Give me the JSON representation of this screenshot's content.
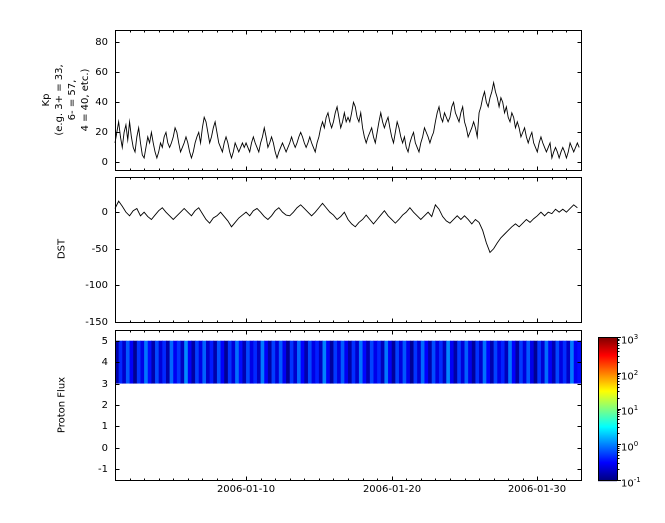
{
  "figure": {
    "background": "#ffffff",
    "frame_color": "#000000",
    "line_color": "#000000"
  },
  "x_axis": {
    "lim_days": [
      1,
      33
    ],
    "minor_step_days": 1,
    "ticks": [
      {
        "day": 10,
        "label": "2006-01-10"
      },
      {
        "day": 20,
        "label": "2006-01-20"
      },
      {
        "day": 30,
        "label": "2006-01-30"
      }
    ]
  },
  "chart_data": [
    {
      "type": "line",
      "name": "kp-index",
      "ylabel_lines": [
        "Kp",
        "(e.g. 3+ = 33,",
        "6- = 57,",
        "4 = 40, etc.)"
      ],
      "ylim": [
        -5,
        88
      ],
      "yticks": [
        0,
        20,
        40,
        60,
        80
      ],
      "x_start_day": 1,
      "x_step_days": 0.125,
      "values": [
        13,
        20,
        27,
        17,
        10,
        20,
        25,
        15,
        27,
        17,
        10,
        7,
        17,
        23,
        13,
        5,
        3,
        10,
        17,
        13,
        20,
        13,
        7,
        3,
        7,
        13,
        10,
        17,
        20,
        13,
        10,
        13,
        17,
        23,
        20,
        13,
        7,
        10,
        13,
        17,
        13,
        7,
        3,
        7,
        13,
        17,
        20,
        13,
        23,
        30,
        27,
        20,
        13,
        17,
        23,
        27,
        20,
        13,
        10,
        7,
        13,
        17,
        13,
        7,
        3,
        7,
        13,
        10,
        7,
        10,
        13,
        10,
        13,
        10,
        7,
        13,
        17,
        13,
        10,
        7,
        13,
        17,
        23,
        17,
        10,
        13,
        17,
        13,
        7,
        3,
        7,
        10,
        13,
        10,
        7,
        10,
        13,
        17,
        13,
        10,
        13,
        17,
        20,
        17,
        13,
        10,
        13,
        17,
        13,
        10,
        7,
        13,
        17,
        23,
        27,
        23,
        30,
        33,
        27,
        23,
        27,
        33,
        37,
        30,
        23,
        27,
        33,
        27,
        30,
        27,
        33,
        40,
        37,
        30,
        27,
        33,
        23,
        17,
        13,
        17,
        20,
        23,
        17,
        13,
        20,
        27,
        33,
        27,
        23,
        27,
        30,
        23,
        17,
        13,
        20,
        27,
        23,
        17,
        13,
        17,
        10,
        7,
        13,
        17,
        20,
        13,
        10,
        7,
        13,
        17,
        23,
        20,
        17,
        13,
        17,
        20,
        27,
        33,
        37,
        30,
        27,
        33,
        30,
        27,
        30,
        37,
        40,
        33,
        30,
        27,
        33,
        37,
        27,
        23,
        17,
        20,
        23,
        27,
        23,
        17,
        33,
        37,
        43,
        47,
        40,
        37,
        43,
        47,
        53,
        47,
        43,
        37,
        43,
        40,
        33,
        37,
        30,
        27,
        33,
        30,
        23,
        27,
        23,
        17,
        20,
        23,
        17,
        13,
        17,
        20,
        13,
        10,
        7,
        13,
        17,
        13,
        10,
        7,
        10,
        13,
        3,
        7,
        10,
        7,
        3,
        7,
        10,
        7,
        3,
        7,
        13,
        10,
        7,
        10,
        13,
        10
      ]
    },
    {
      "type": "line",
      "name": "dst-index",
      "ylabel": "DST",
      "ylim": [
        -150,
        48
      ],
      "yticks": [
        0,
        -50,
        -100,
        -150
      ],
      "x_start_day": 1,
      "x_step_days": 0.25,
      "values": [
        5,
        15,
        8,
        0,
        -5,
        2,
        5,
        -5,
        0,
        -6,
        -10,
        -4,
        2,
        6,
        0,
        -5,
        -10,
        -5,
        0,
        5,
        0,
        -5,
        2,
        6,
        -2,
        -10,
        -15,
        -8,
        -5,
        0,
        -6,
        -12,
        -20,
        -14,
        -8,
        -4,
        0,
        -5,
        2,
        5,
        0,
        -6,
        -10,
        -5,
        2,
        6,
        0,
        -4,
        -5,
        0,
        6,
        10,
        5,
        0,
        -5,
        0,
        6,
        12,
        6,
        0,
        -4,
        -10,
        -6,
        0,
        -10,
        -16,
        -20,
        -14,
        -10,
        -4,
        -10,
        -16,
        -10,
        -4,
        2,
        -5,
        -10,
        -15,
        -10,
        -4,
        0,
        6,
        0,
        -5,
        -10,
        -5,
        0,
        -6,
        10,
        4,
        -6,
        -12,
        -15,
        -10,
        -5,
        -10,
        -5,
        -10,
        -16,
        -10,
        -14,
        -25,
        -42,
        -55,
        -50,
        -42,
        -35,
        -30,
        -25,
        -20,
        -16,
        -20,
        -15,
        -10,
        -14,
        -9,
        -5,
        0,
        -5,
        0,
        -2,
        4,
        0,
        4,
        0,
        5,
        10,
        6
      ]
    },
    {
      "type": "heatmap",
      "name": "proton-flux",
      "ylabel": "Proton Flux",
      "ylim": [
        -1.5,
        5.5
      ],
      "yticks": [
        5,
        4,
        3,
        2,
        1,
        0,
        -1
      ],
      "band_y_extent": [
        3,
        5
      ],
      "x_start_day": 1,
      "x_step_days": 0.25,
      "colormap": "jet",
      "scale": {
        "type": "log",
        "min": 0.1,
        "max": 1000
      },
      "values": [
        0.15,
        0.45,
        0.2,
        0.7,
        0.3,
        0.12,
        0.5,
        0.25,
        0.9,
        0.35,
        0.15,
        0.6,
        0.22,
        0.45,
        0.15,
        0.8,
        0.28,
        0.5,
        0.18,
        1.1,
        0.3,
        0.14,
        0.55,
        0.25,
        0.75,
        0.2,
        0.4,
        0.15,
        0.65,
        0.3,
        0.12,
        0.5,
        0.22,
        0.85,
        0.35,
        0.16,
        0.6,
        0.25,
        0.45,
        0.18,
        0.95,
        0.3,
        0.14,
        0.55,
        0.22,
        0.7,
        0.28,
        0.12,
        0.5,
        0.2,
        0.8,
        0.32,
        0.15,
        0.6,
        0.25,
        0.42,
        0.18,
        1.0,
        0.3,
        0.13,
        0.52,
        0.24,
        0.72,
        0.28,
        0.14,
        0.48,
        0.2,
        0.88,
        0.33,
        0.16,
        0.58,
        0.26,
        0.44,
        0.17,
        0.92,
        0.3,
        0.13,
        0.56,
        0.23,
        0.68,
        0.27,
        0.12,
        0.5,
        0.21,
        0.82,
        0.31,
        0.15,
        0.62,
        0.24,
        0.46,
        0.18,
        1.05,
        0.29,
        0.14,
        0.54,
        0.22,
        0.74,
        0.27,
        0.13,
        0.49,
        0.2,
        0.86,
        0.32,
        0.15,
        0.57,
        0.25,
        0.43,
        0.17,
        0.9,
        0.31,
        0.14,
        0.53,
        0.23,
        0.7,
        0.26,
        0.12,
        0.51,
        0.21,
        0.84,
        0.3,
        0.16,
        0.6,
        0.24,
        0.47,
        0.19,
        0.95,
        0.28,
        0.35
      ]
    }
  ],
  "colorbar": {
    "ticks": [
      {
        "base": "10",
        "exp": "3",
        "value": 1000
      },
      {
        "base": "10",
        "exp": "2",
        "value": 100
      },
      {
        "base": "10",
        "exp": "1",
        "value": 10
      },
      {
        "base": "10",
        "exp": "0",
        "value": 1
      },
      {
        "base": "10",
        "exp": "-1",
        "value": 0.1
      }
    ]
  }
}
